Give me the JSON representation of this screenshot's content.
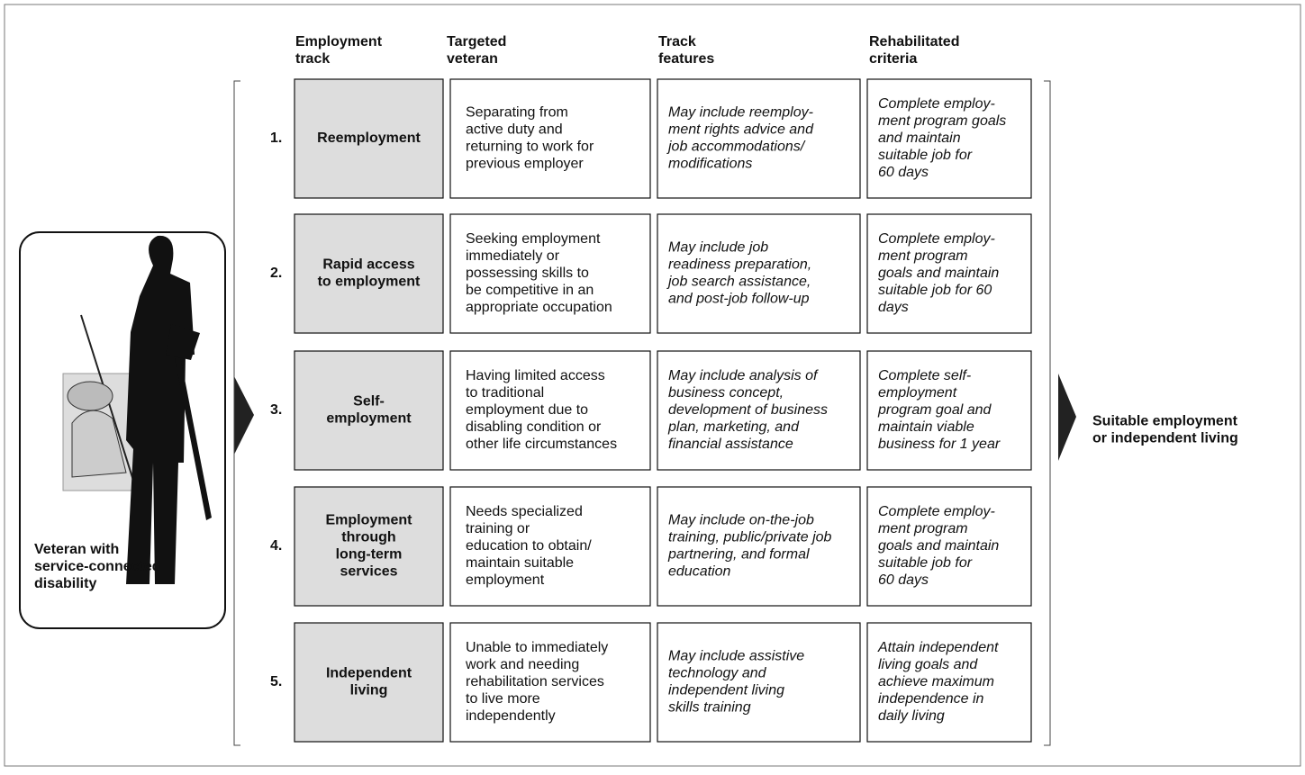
{
  "headers": [
    [
      "Employment",
      "track"
    ],
    [
      "Targeted",
      "veteran"
    ],
    [
      "Track",
      "features"
    ],
    [
      "Rehabilitated",
      "criteria"
    ]
  ],
  "left_label": [
    "Veteran with",
    "service-connected",
    "disability"
  ],
  "right_label": [
    "Suitable employment",
    "or independent living"
  ],
  "rows": [
    {
      "number": "1.",
      "track": [
        "Reemployment"
      ],
      "veteran": [
        "Separating from",
        "active duty and",
        "returning to work for",
        "previous employer"
      ],
      "features": [
        "May include reemploy-",
        "ment rights advice and",
        "job accommodations/",
        "modifications"
      ],
      "criteria": [
        "Complete employ-",
        "ment program goals",
        "and maintain",
        "suitable job for",
        "60 days"
      ]
    },
    {
      "number": "2.",
      "track": [
        "Rapid access",
        "to employment"
      ],
      "veteran": [
        "Seeking employment",
        "immediately or",
        "possessing skills to",
        "be competitive in an",
        "appropriate occupation"
      ],
      "features": [
        "May include job",
        "readiness preparation,",
        "job search assistance,",
        "and post-job follow-up"
      ],
      "criteria": [
        "Complete employ-",
        "ment  program",
        "goals and maintain",
        "suitable job for 60",
        "days"
      ]
    },
    {
      "number": "3.",
      "track": [
        "Self-",
        "employment"
      ],
      "veteran": [
        "Having limited access",
        "to traditional",
        "employment due to",
        "disabling condition or",
        "other life circumstances"
      ],
      "features": [
        "May include analysis of",
        "business concept,",
        "development of business",
        "plan, marketing, and",
        "financial assistance"
      ],
      "criteria": [
        "Complete self-",
        "employment",
        "program goal and",
        "maintain viable",
        "business for 1 year"
      ]
    },
    {
      "number": "4.",
      "track": [
        "Employment",
        "through",
        "long-term",
        "services"
      ],
      "veteran": [
        "Needs specialized",
        "training or",
        "education to obtain/",
        "maintain suitable",
        "employment"
      ],
      "features": [
        "May include on-the-job",
        "training, public/private job",
        "partnering, and formal",
        "education"
      ],
      "criteria": [
        "Complete employ-",
        "ment program",
        "goals and maintain",
        "suitable job for",
        "60 days"
      ]
    },
    {
      "number": "5.",
      "track": [
        "Independent",
        "living"
      ],
      "veteran": [
        "Unable to immediately",
        "work and needing",
        "rehabilitation services",
        "to live more",
        "independently"
      ],
      "features": [
        "May include assistive",
        "technology and",
        "independent living",
        "skills training"
      ],
      "criteria": [
        "Attain independent",
        "living goals and",
        "achieve maximum",
        "independence in",
        "daily living"
      ]
    }
  ]
}
